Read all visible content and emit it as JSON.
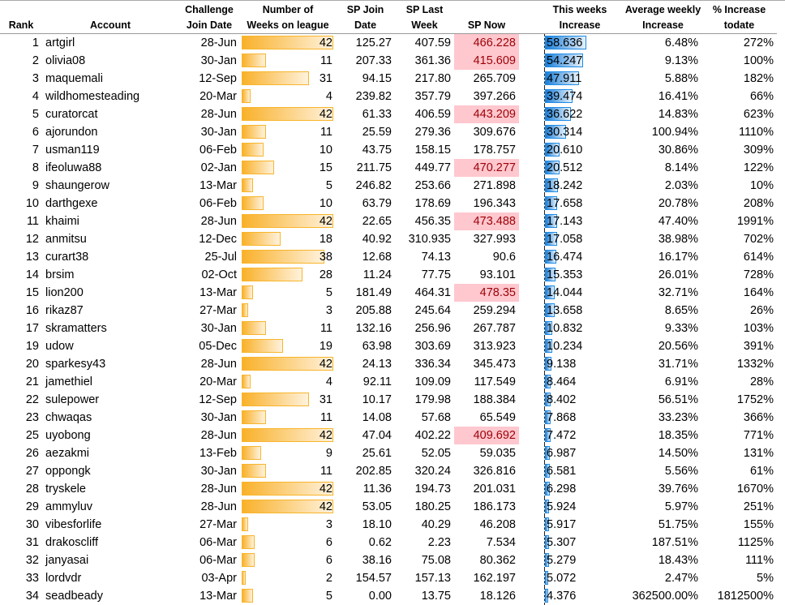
{
  "headers": {
    "rank": "Rank",
    "account": "Account",
    "join_date": [
      "Challenge",
      "Join Date"
    ],
    "weeks": [
      "Number of",
      "Weeks on league"
    ],
    "sp_join": [
      "SP Join",
      "Date"
    ],
    "sp_last": [
      "SP Last",
      "Week"
    ],
    "sp_now": "SP Now",
    "this_week": [
      "This weeks",
      "Increase"
    ],
    "avg_weekly": [
      "Average weekly",
      "Increase"
    ],
    "pct_todate": [
      "% Increase",
      "todate"
    ]
  },
  "colors": {
    "weeks_bar": "#f9b12a",
    "increase_bar": "#1b7fd9",
    "highlight_bg": "#ffc7ce",
    "highlight_text": "#9c0006"
  },
  "rows": [
    {
      "rank": "1",
      "account": "artgirl",
      "date": "28-Jun",
      "weeks": 42,
      "sp_join": "125.27",
      "sp_last": "407.59",
      "sp_now": "466.228",
      "hl": true,
      "inc": "58.636",
      "avg": "6.48%",
      "pct": "272%"
    },
    {
      "rank": "2",
      "account": "olivia08",
      "date": "30-Jan",
      "weeks": 11,
      "sp_join": "207.33",
      "sp_last": "361.36",
      "sp_now": "415.609",
      "hl": true,
      "inc": "54.247",
      "avg": "9.13%",
      "pct": "100%"
    },
    {
      "rank": "3",
      "account": "maquemali",
      "date": "12-Sep",
      "weeks": 31,
      "sp_join": "94.15",
      "sp_last": "217.80",
      "sp_now": "265.709",
      "hl": false,
      "inc": "47.911",
      "avg": "5.88%",
      "pct": "182%"
    },
    {
      "rank": "4",
      "account": "wildhomesteading",
      "date": "20-Mar",
      "weeks": 4,
      "sp_join": "239.82",
      "sp_last": "357.79",
      "sp_now": "397.266",
      "hl": false,
      "inc": "39.474",
      "avg": "16.41%",
      "pct": "66%"
    },
    {
      "rank": "5",
      "account": "curatorcat",
      "date": "28-Jun",
      "weeks": 42,
      "sp_join": "61.33",
      "sp_last": "406.59",
      "sp_now": "443.209",
      "hl": true,
      "inc": "36.622",
      "avg": "14.83%",
      "pct": "623%"
    },
    {
      "rank": "6",
      "account": "ajorundon",
      "date": "30-Jan",
      "weeks": 11,
      "sp_join": "25.59",
      "sp_last": "279.36",
      "sp_now": "309.676",
      "hl": false,
      "inc": "30.314",
      "avg": "100.94%",
      "pct": "1110%"
    },
    {
      "rank": "7",
      "account": "usman119",
      "date": "06-Feb",
      "weeks": 10,
      "sp_join": "43.75",
      "sp_last": "158.15",
      "sp_now": "178.757",
      "hl": false,
      "inc": "20.610",
      "avg": "30.86%",
      "pct": "309%"
    },
    {
      "rank": "8",
      "account": "ifeoluwa88",
      "date": "02-Jan",
      "weeks": 15,
      "sp_join": "211.75",
      "sp_last": "449.77",
      "sp_now": "470.277",
      "hl": true,
      "inc": "20.512",
      "avg": "8.14%",
      "pct": "122%"
    },
    {
      "rank": "9",
      "account": "shaungerow",
      "date": "13-Mar",
      "weeks": 5,
      "sp_join": "246.82",
      "sp_last": "253.66",
      "sp_now": "271.898",
      "hl": false,
      "inc": "18.242",
      "avg": "2.03%",
      "pct": "10%"
    },
    {
      "rank": "10",
      "account": "darthgexe",
      "date": "06-Feb",
      "weeks": 10,
      "sp_join": "63.79",
      "sp_last": "178.69",
      "sp_now": "196.343",
      "hl": false,
      "inc": "17.658",
      "avg": "20.78%",
      "pct": "208%"
    },
    {
      "rank": "11",
      "account": "khaimi",
      "date": "28-Jun",
      "weeks": 42,
      "sp_join": "22.65",
      "sp_last": "456.35",
      "sp_now": "473.488",
      "hl": true,
      "inc": "17.143",
      "avg": "47.40%",
      "pct": "1991%"
    },
    {
      "rank": "12",
      "account": "anmitsu",
      "date": "12-Dec",
      "weeks": 18,
      "sp_join": "40.92",
      "sp_last": "310.935",
      "sp_now": "327.993",
      "hl": false,
      "inc": "17.058",
      "avg": "38.98%",
      "pct": "702%"
    },
    {
      "rank": "13",
      "account": "curart38",
      "date": "25-Jul",
      "weeks": 38,
      "sp_join": "12.68",
      "sp_last": "74.13",
      "sp_now": "90.6",
      "hl": false,
      "inc": "16.474",
      "avg": "16.17%",
      "pct": "614%"
    },
    {
      "rank": "14",
      "account": "brsim",
      "date": "02-Oct",
      "weeks": 28,
      "sp_join": "11.24",
      "sp_last": "77.75",
      "sp_now": "93.101",
      "hl": false,
      "inc": "15.353",
      "avg": "26.01%",
      "pct": "728%"
    },
    {
      "rank": "15",
      "account": "lion200",
      "date": "13-Mar",
      "weeks": 5,
      "sp_join": "181.49",
      "sp_last": "464.31",
      "sp_now": "478.35",
      "hl": true,
      "inc": "14.044",
      "avg": "32.71%",
      "pct": "164%"
    },
    {
      "rank": "16",
      "account": "rikaz87",
      "date": "27-Mar",
      "weeks": 3,
      "sp_join": "205.88",
      "sp_last": "245.64",
      "sp_now": "259.294",
      "hl": false,
      "inc": "13.658",
      "avg": "8.65%",
      "pct": "26%"
    },
    {
      "rank": "17",
      "account": "skramatters",
      "date": "30-Jan",
      "weeks": 11,
      "sp_join": "132.16",
      "sp_last": "256.96",
      "sp_now": "267.787",
      "hl": false,
      "inc": "10.832",
      "avg": "9.33%",
      "pct": "103%"
    },
    {
      "rank": "19",
      "account": "udow",
      "date": "05-Dec",
      "weeks": 19,
      "sp_join": "63.98",
      "sp_last": "303.69",
      "sp_now": "313.923",
      "hl": false,
      "inc": "10.234",
      "avg": "20.56%",
      "pct": "391%"
    },
    {
      "rank": "20",
      "account": "sparkesy43",
      "date": "28-Jun",
      "weeks": 42,
      "sp_join": "24.13",
      "sp_last": "336.34",
      "sp_now": "345.473",
      "hl": false,
      "inc": "9.138",
      "avg": "31.71%",
      "pct": "1332%"
    },
    {
      "rank": "21",
      "account": "jamethiel",
      "date": "20-Mar",
      "weeks": 4,
      "sp_join": "92.11",
      "sp_last": "109.09",
      "sp_now": "117.549",
      "hl": false,
      "inc": "8.464",
      "avg": "6.91%",
      "pct": "28%"
    },
    {
      "rank": "22",
      "account": "sulepower",
      "date": "12-Sep",
      "weeks": 31,
      "sp_join": "10.17",
      "sp_last": "179.98",
      "sp_now": "188.384",
      "hl": false,
      "inc": "8.402",
      "avg": "56.51%",
      "pct": "1752%"
    },
    {
      "rank": "23",
      "account": "chwaqas",
      "date": "30-Jan",
      "weeks": 11,
      "sp_join": "14.08",
      "sp_last": "57.68",
      "sp_now": "65.549",
      "hl": false,
      "inc": "7.868",
      "avg": "33.23%",
      "pct": "366%"
    },
    {
      "rank": "25",
      "account": "uyobong",
      "date": "28-Jun",
      "weeks": 42,
      "sp_join": "47.04",
      "sp_last": "402.22",
      "sp_now": "409.692",
      "hl": true,
      "inc": "7.472",
      "avg": "18.35%",
      "pct": "771%"
    },
    {
      "rank": "26",
      "account": "aezakmi",
      "date": "13-Feb",
      "weeks": 9,
      "sp_join": "25.61",
      "sp_last": "52.05",
      "sp_now": "59.035",
      "hl": false,
      "inc": "6.987",
      "avg": "14.50%",
      "pct": "131%"
    },
    {
      "rank": "27",
      "account": "oppongk",
      "date": "30-Jan",
      "weeks": 11,
      "sp_join": "202.85",
      "sp_last": "320.24",
      "sp_now": "326.816",
      "hl": false,
      "inc": "6.581",
      "avg": "5.56%",
      "pct": "61%"
    },
    {
      "rank": "28",
      "account": "tryskele",
      "date": "28-Jun",
      "weeks": 42,
      "sp_join": "11.36",
      "sp_last": "194.73",
      "sp_now": "201.031",
      "hl": false,
      "inc": "6.298",
      "avg": "39.76%",
      "pct": "1670%"
    },
    {
      "rank": "29",
      "account": "ammyluv",
      "date": "28-Jun",
      "weeks": 42,
      "sp_join": "53.05",
      "sp_last": "180.25",
      "sp_now": "186.173",
      "hl": false,
      "inc": "5.924",
      "avg": "5.97%",
      "pct": "251%"
    },
    {
      "rank": "30",
      "account": "vibesforlife",
      "date": "27-Mar",
      "weeks": 3,
      "sp_join": "18.10",
      "sp_last": "40.29",
      "sp_now": "46.208",
      "hl": false,
      "inc": "5.917",
      "avg": "51.75%",
      "pct": "155%"
    },
    {
      "rank": "31",
      "account": "drakoscliff",
      "date": "06-Mar",
      "weeks": 6,
      "sp_join": "0.62",
      "sp_last": "2.23",
      "sp_now": "7.534",
      "hl": false,
      "inc": "5.307",
      "avg": "187.51%",
      "pct": "1125%"
    },
    {
      "rank": "32",
      "account": "janyasai",
      "date": "06-Mar",
      "weeks": 6,
      "sp_join": "38.16",
      "sp_last": "75.08",
      "sp_now": "80.362",
      "hl": false,
      "inc": "5.279",
      "avg": "18.43%",
      "pct": "111%"
    },
    {
      "rank": "33",
      "account": "lordvdr",
      "date": "03-Apr",
      "weeks": 2,
      "sp_join": "154.57",
      "sp_last": "157.13",
      "sp_now": "162.197",
      "hl": false,
      "inc": "5.072",
      "avg": "2.47%",
      "pct": "5%"
    },
    {
      "rank": "34",
      "account": "seadbeady",
      "date": "13-Mar",
      "weeks": 5,
      "sp_join": "0.00",
      "sp_last": "13.75",
      "sp_now": "18.126",
      "hl": false,
      "inc": "4.376",
      "avg": "362500.00%",
      "pct": "1812500%"
    }
  ]
}
